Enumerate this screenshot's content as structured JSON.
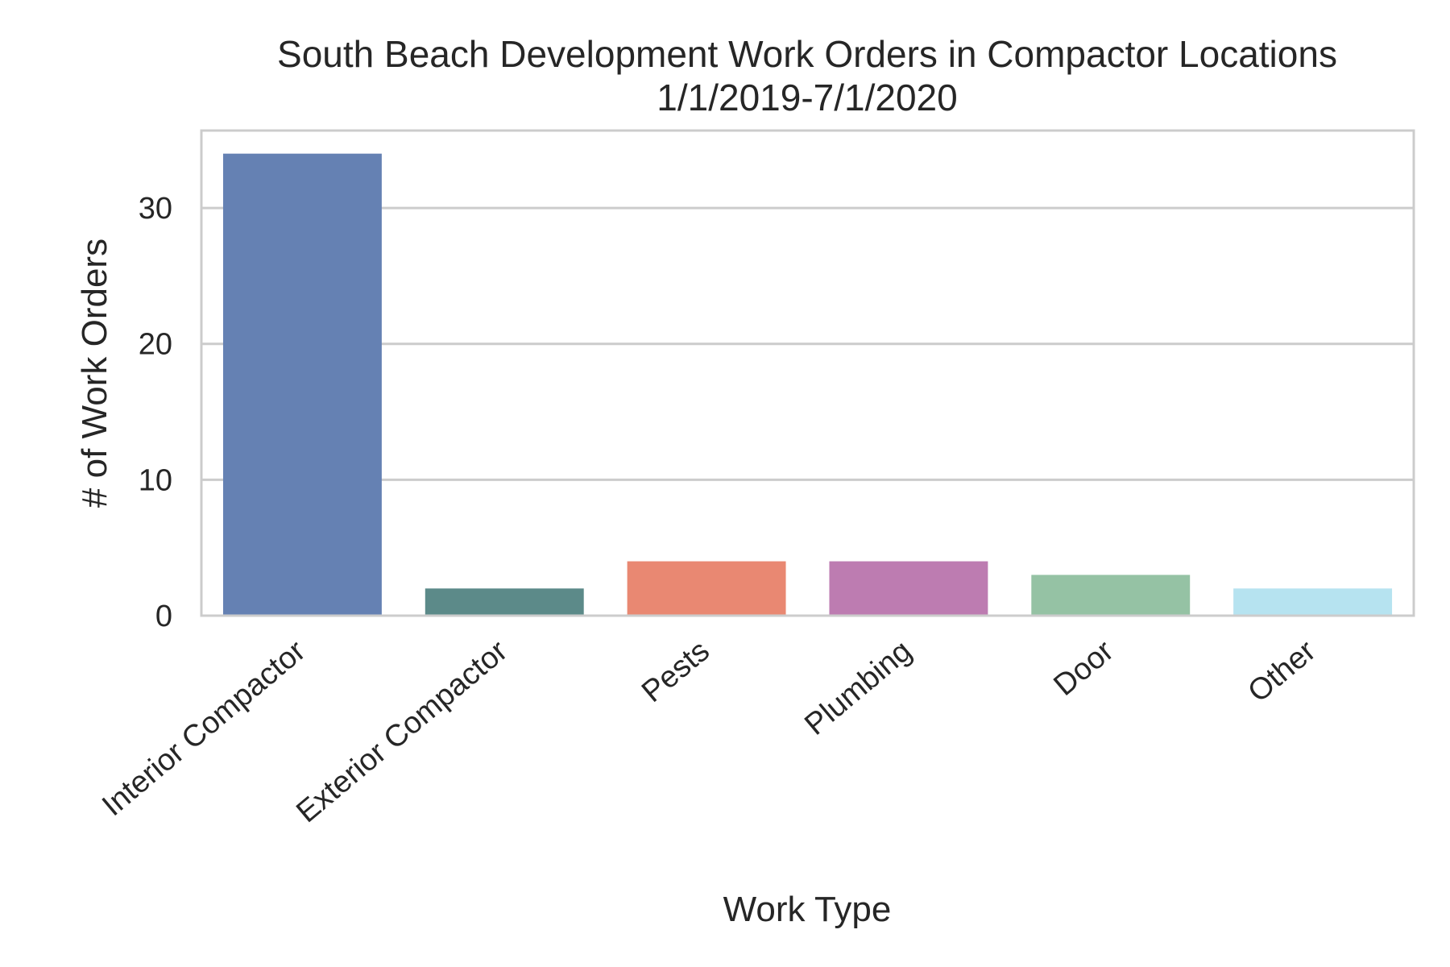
{
  "chart_data": {
    "type": "bar",
    "title": "South Beach Development Work Orders in Compactor Locations",
    "subtitle": "1/1/2019-7/1/2020",
    "xlabel": "Work Type",
    "ylabel": "# of Work Orders",
    "categories": [
      "Interior Compactor",
      "Exterior Compactor",
      "Pests",
      "Plumbing",
      "Door",
      "Other"
    ],
    "values": [
      34,
      2,
      4,
      4,
      3,
      2
    ],
    "colors": [
      "#6581b3",
      "#5c8a89",
      "#e98872",
      "#bd7cb1",
      "#95c2a4",
      "#b6e3f0"
    ],
    "ylim": [
      0,
      35.7
    ],
    "yticks": [
      0,
      10,
      20,
      30
    ],
    "grid": true,
    "background": "#ffffff"
  }
}
